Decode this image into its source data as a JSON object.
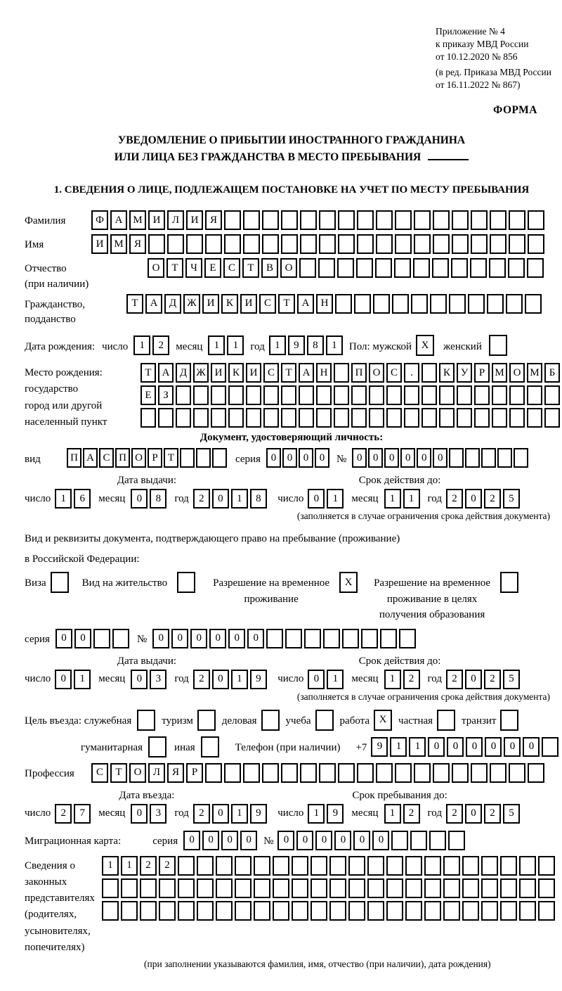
{
  "header": {
    "l1": "Приложение № 4",
    "l2": "к приказу МВД России",
    "l3": "от 10.12.2020 № 856",
    "l4": "(в ред. Приказа МВД России",
    "l5": "от 16.11.2022 № 867)",
    "form_label": "ФОРМА"
  },
  "title": {
    "line1": "УВЕДОМЛЕНИЕ О ПРИБЫТИИ ИНОСТРАННОГО ГРАЖДАНИНА",
    "line2": "ИЛИ ЛИЦА БЕЗ ГРАЖДАНСТВА В МЕСТО ПРЕБЫВАНИЯ"
  },
  "section1_heading": "1. СВЕДЕНИЯ О ЛИЦЕ, ПОДЛЕЖАЩЕМ ПОСТАНОВКЕ НА УЧЕТ ПО МЕСТУ ПРЕБЫВАНИЯ",
  "labels": {
    "surname": "Фамилия",
    "name": "Имя",
    "patronymic_l1": "Отчество",
    "patronymic_l2": "(при наличии)",
    "citizenship_l1": "Гражданство,",
    "citizenship_l2": "подданство",
    "birthdate": "Дата рождения:",
    "day": "число",
    "month": "месяц",
    "year": "год",
    "sex_male": "Пол: мужской",
    "sex_female": "женский",
    "birthplace_l1": "Место рождения:",
    "birthplace_l2": "государство",
    "birthplace_l3": "город или другой",
    "birthplace_l4": "населенный пункт",
    "identity_doc_heading": "Документ, удостоверяющий личность:",
    "doc_kind": "вид",
    "series": "серия",
    "number_sign": "№",
    "issue_date": "Дата выдачи:",
    "valid_until": "Срок действия до:",
    "validity_note": "(заполняется в случае ограничения срока действия документа)",
    "residence_doc_l1": "Вид и реквизиты документа, подтверждающего право на пребывание (проживание)",
    "residence_doc_l2": "в Российской Федерации:",
    "visa": "Виза",
    "residence_permit": "Вид на жительство",
    "temp_permit_l1": "Разрешение на временное",
    "temp_permit_l2": "проживание",
    "temp_permit_edu_l1": "Разрешение на временное",
    "temp_permit_edu_l2": "проживание в целях",
    "temp_permit_edu_l3": "получения образования",
    "purpose": "Цель въезда: служебная",
    "tourism": "туризм",
    "business": "деловая",
    "study": "учеба",
    "work": "работа",
    "private": "частная",
    "transit": "транзит",
    "humanitarian": "гуманитарная",
    "other": "иная",
    "phone": "Телефон (при наличии)",
    "phone_prefix": "+7",
    "profession": "Профессия",
    "entry_date": "Дата въезда:",
    "stay_until": "Срок пребывания до:",
    "migration_card": "Миграционная карта:",
    "representatives_l1": "Сведения о",
    "representatives_l2": "законных",
    "representatives_l3": "представителях",
    "representatives_l4": "(родителях,",
    "representatives_l5": "усыновителях,",
    "representatives_l6": "попечителях)",
    "representatives_note": "(при заполнении указываются фамилия, имя, отчество (при наличии), дата рождения)"
  },
  "boxes": {
    "surname": {
      "value": "ФАМИЛИЯ",
      "count": 24
    },
    "name": {
      "value": "ИМЯ",
      "count": 24
    },
    "patronymic": {
      "value": "ОТЧЕСТВО",
      "count": 21
    },
    "citizenship": {
      "value": "ТАДЖИКИСТАН",
      "count": 22
    },
    "birth_day": {
      "value": "12",
      "count": 2
    },
    "birth_month": {
      "value": "11",
      "count": 2
    },
    "birth_year": {
      "value": "1981",
      "count": 4
    },
    "sex_male_cb": {
      "value": "X",
      "count": 1
    },
    "sex_female_cb": {
      "value": "",
      "count": 1
    },
    "birthplace_1": {
      "value": "ТАДЖИКИСТАН ПОС. КУРМОМБ",
      "count": 24
    },
    "birthplace_2": {
      "value": "ЕЗ",
      "count": 24
    },
    "birthplace_3": {
      "value": "",
      "count": 24
    },
    "id_doc_kind": {
      "value": "ПАСПОРТ",
      "count": 10
    },
    "id_doc_series": {
      "value": "0000",
      "count": 4
    },
    "id_doc_number": {
      "value": "000000",
      "count": 11
    },
    "id_issue_day": {
      "value": "16",
      "count": 2
    },
    "id_issue_month": {
      "value": "08",
      "count": 2
    },
    "id_issue_year": {
      "value": "2018",
      "count": 4
    },
    "id_valid_day": {
      "value": "01",
      "count": 2
    },
    "id_valid_month": {
      "value": "11",
      "count": 2
    },
    "id_valid_year": {
      "value": "2025",
      "count": 4
    },
    "visa_cb": {
      "value": "",
      "count": 1
    },
    "residence_permit_cb": {
      "value": "",
      "count": 1
    },
    "temp_permit_cb": {
      "value": "X",
      "count": 1
    },
    "temp_permit_edu_cb": {
      "value": "",
      "count": 1
    },
    "res_series": {
      "value": "00",
      "count": 4
    },
    "res_number": {
      "value": "000000",
      "count": 14
    },
    "res_issue_day": {
      "value": "01",
      "count": 2
    },
    "res_issue_month": {
      "value": "03",
      "count": 2
    },
    "res_issue_year": {
      "value": "2019",
      "count": 4
    },
    "res_valid_day": {
      "value": "01",
      "count": 2
    },
    "res_valid_month": {
      "value": "12",
      "count": 2
    },
    "res_valid_year": {
      "value": "2025",
      "count": 4
    },
    "purpose_official_cb": {
      "value": "",
      "count": 1
    },
    "purpose_tourism_cb": {
      "value": "",
      "count": 1
    },
    "purpose_business_cb": {
      "value": "",
      "count": 1
    },
    "purpose_study_cb": {
      "value": "",
      "count": 1
    },
    "purpose_work_cb": {
      "value": "X",
      "count": 1
    },
    "purpose_private_cb": {
      "value": "",
      "count": 1
    },
    "purpose_transit_cb": {
      "value": "",
      "count": 1
    },
    "purpose_humanitarian_cb": {
      "value": "",
      "count": 1
    },
    "purpose_other_cb": {
      "value": "",
      "count": 1
    },
    "phone_number": {
      "value": "911000000",
      "count": 10
    },
    "profession": {
      "value": "СТОЛЯР",
      "count": 24
    },
    "entry_day": {
      "value": "27",
      "count": 2
    },
    "entry_month": {
      "value": "03",
      "count": 2
    },
    "entry_year": {
      "value": "2019",
      "count": 4
    },
    "stay_day": {
      "value": "19",
      "count": 2
    },
    "stay_month": {
      "value": "12",
      "count": 2
    },
    "stay_year": {
      "value": "2025",
      "count": 4
    },
    "mig_series": {
      "value": "0000",
      "count": 4
    },
    "mig_number": {
      "value": "000000",
      "count": 10
    },
    "representatives_1": {
      "value": "1122",
      "count": 24
    },
    "representatives_2": {
      "value": "",
      "count": 24
    },
    "representatives_3": {
      "value": "",
      "count": 24
    }
  }
}
